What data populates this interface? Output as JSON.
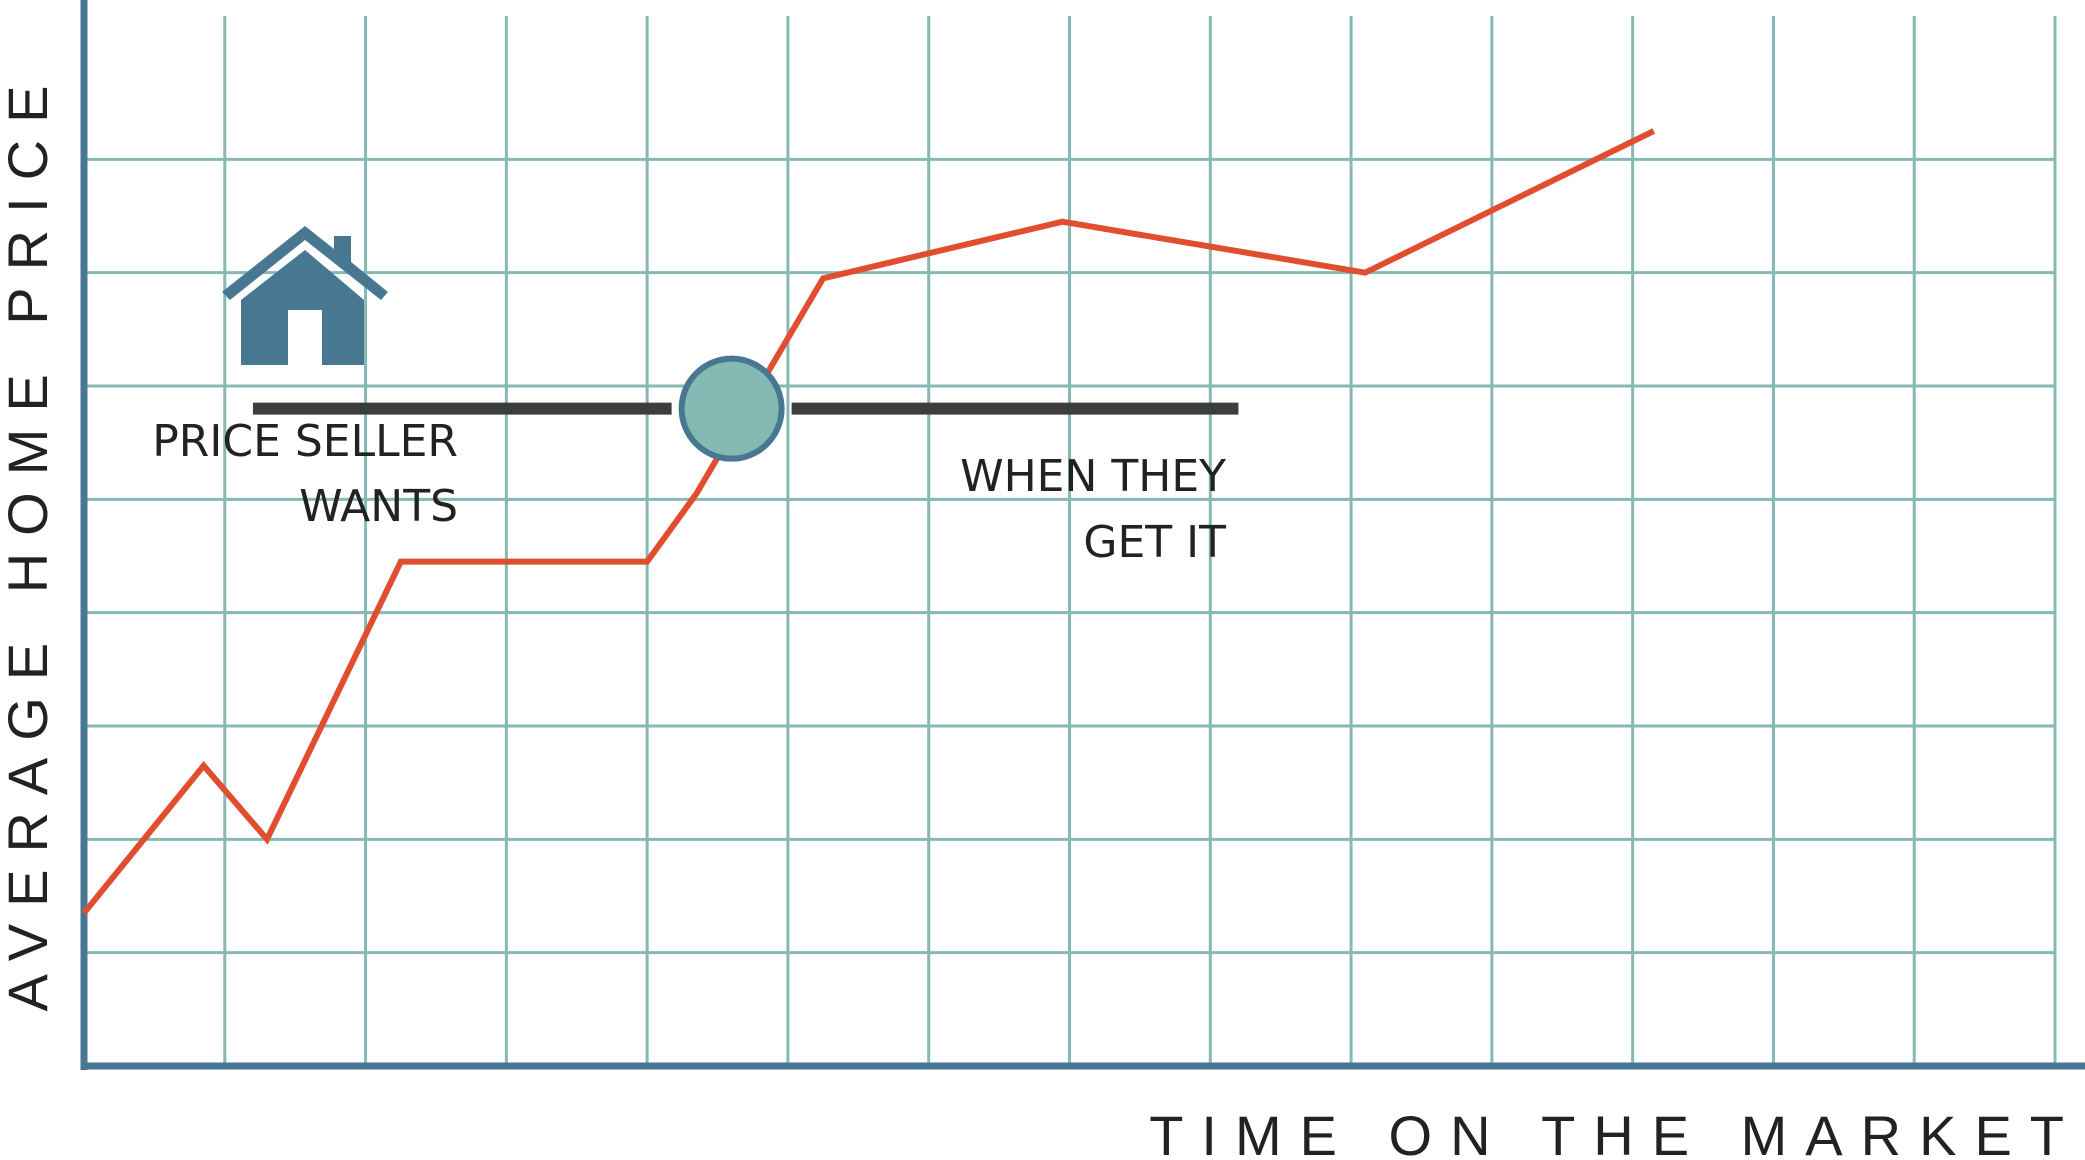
{
  "chart_data": {
    "type": "line",
    "xlabel": "TIME ON THE MARKET",
    "ylabel": "AVERAGE HOME PRICE",
    "xlim": [
      0,
      14
    ],
    "ylim": [
      0,
      9
    ],
    "grid": true,
    "series": [
      {
        "color": "#e04e2f",
        "points": [
          [
            0,
            1.35
          ],
          [
            0.85,
            2.65
          ],
          [
            1.3,
            2.0
          ],
          [
            2.25,
            4.45
          ],
          [
            4.0,
            4.45
          ],
          [
            4.35,
            5.05
          ],
          [
            5.25,
            6.95
          ],
          [
            6.95,
            7.45
          ],
          [
            9.1,
            7.0
          ],
          [
            11.15,
            8.25
          ]
        ]
      }
    ],
    "threshold": {
      "y": 5.8,
      "x_start": 1.2,
      "x_end": 8.2,
      "marker_x": 4.6,
      "color": "#3d3d3d",
      "marker_fill": "#84b9b4",
      "marker_stroke": "#477791"
    },
    "annotations": [
      {
        "id": "price-seller-wants",
        "lines": [
          "PRICE SELLER",
          "WANTS"
        ]
      },
      {
        "id": "when-they-get-it",
        "lines": [
          "WHEN THEY",
          "GET IT"
        ]
      }
    ],
    "icons": [
      {
        "name": "house-icon",
        "color": "#477791"
      }
    ],
    "colors": {
      "grid": "#84b9b4",
      "axis": "#477791",
      "line": "#e04e2f"
    }
  }
}
